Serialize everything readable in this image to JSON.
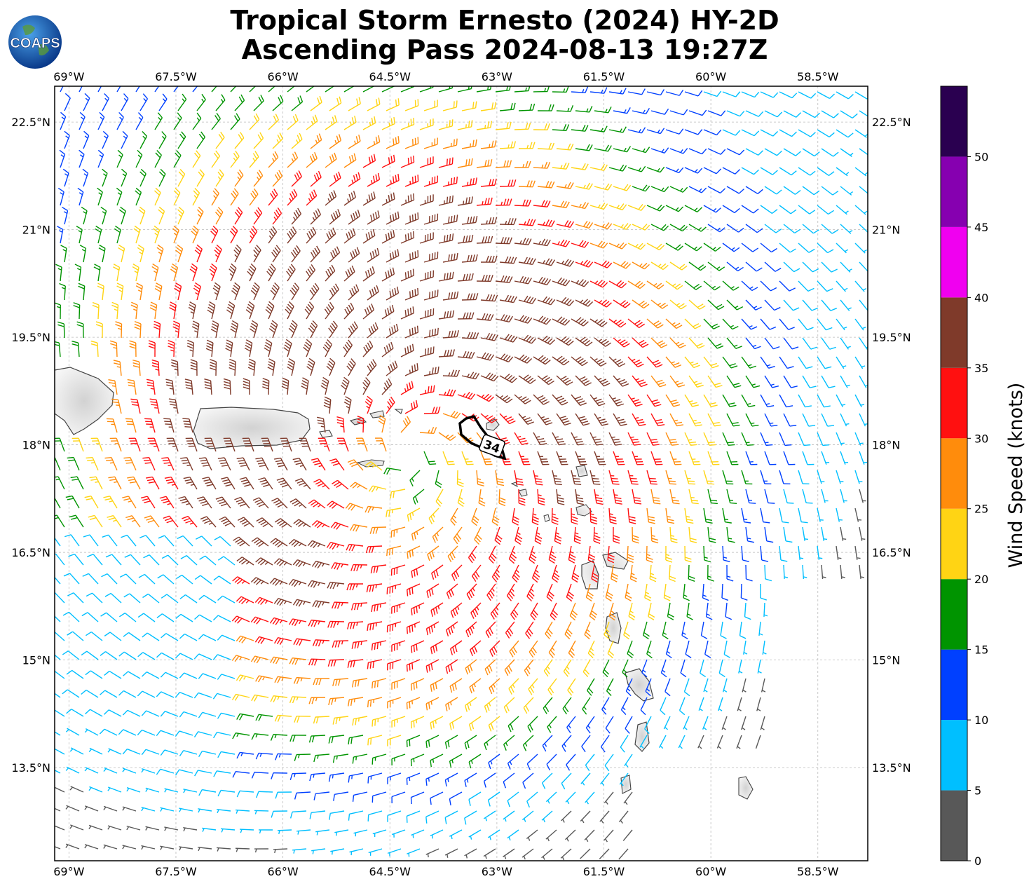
{
  "title": {
    "line1": "Tropical Storm Ernesto (2024) HY-2D",
    "line2": "Ascending Pass 2024-08-13 19:27Z"
  },
  "logo": {
    "text": "COAPS",
    "icon": "globe-icon"
  },
  "map": {
    "lon_range": [
      -69.2,
      -57.8
    ],
    "lat_range": [
      12.2,
      23.0
    ],
    "lon_ticks": [
      {
        "value": -69.0,
        "label": "69°W"
      },
      {
        "value": -67.5,
        "label": "67.5°W"
      },
      {
        "value": -66.0,
        "label": "66°W"
      },
      {
        "value": -64.5,
        "label": "64.5°W"
      },
      {
        "value": -63.0,
        "label": "63°W"
      },
      {
        "value": -61.5,
        "label": "61.5°W"
      },
      {
        "value": -60.0,
        "label": "60°W"
      },
      {
        "value": -58.5,
        "label": "58.5°W"
      }
    ],
    "lat_ticks": [
      {
        "value": 22.5,
        "label": "22.5°N"
      },
      {
        "value": 21.0,
        "label": "21°N"
      },
      {
        "value": 19.5,
        "label": "19.5°N"
      },
      {
        "value": 18.0,
        "label": "18°N"
      },
      {
        "value": 16.5,
        "label": "16.5°N"
      },
      {
        "value": 15.0,
        "label": "15°N"
      },
      {
        "value": 13.5,
        "label": "13.5°N"
      }
    ],
    "grid": true,
    "storm_center": {
      "lon": -64.2,
      "lat": 17.9
    },
    "contour_label": "34",
    "contour_center": {
      "lon": -63.1,
      "lat": 18.0
    }
  },
  "colorbar": {
    "label": "Wind Speed (knots)",
    "bins": [
      {
        "min": 0,
        "max": 5,
        "color": "#585858"
      },
      {
        "min": 5,
        "max": 10,
        "color": "#00bfff"
      },
      {
        "min": 10,
        "max": 15,
        "color": "#0040ff"
      },
      {
        "min": 15,
        "max": 20,
        "color": "#009400"
      },
      {
        "min": 20,
        "max": 25,
        "color": "#ffd414"
      },
      {
        "min": 25,
        "max": 30,
        "color": "#ff8c0c"
      },
      {
        "min": 30,
        "max": 35,
        "color": "#ff1010"
      },
      {
        "min": 35,
        "max": 40,
        "color": "#7f3a2a"
      },
      {
        "min": 40,
        "max": 45,
        "color": "#f000f0"
      },
      {
        "min": 45,
        "max": 50,
        "color": "#8600b0"
      },
      {
        "min": 50,
        "max": 55,
        "color": "#2a0050"
      }
    ],
    "tick_labels": [
      "0",
      "5",
      "10",
      "15",
      "20",
      "25",
      "30",
      "35",
      "40",
      "45",
      "50"
    ]
  }
}
